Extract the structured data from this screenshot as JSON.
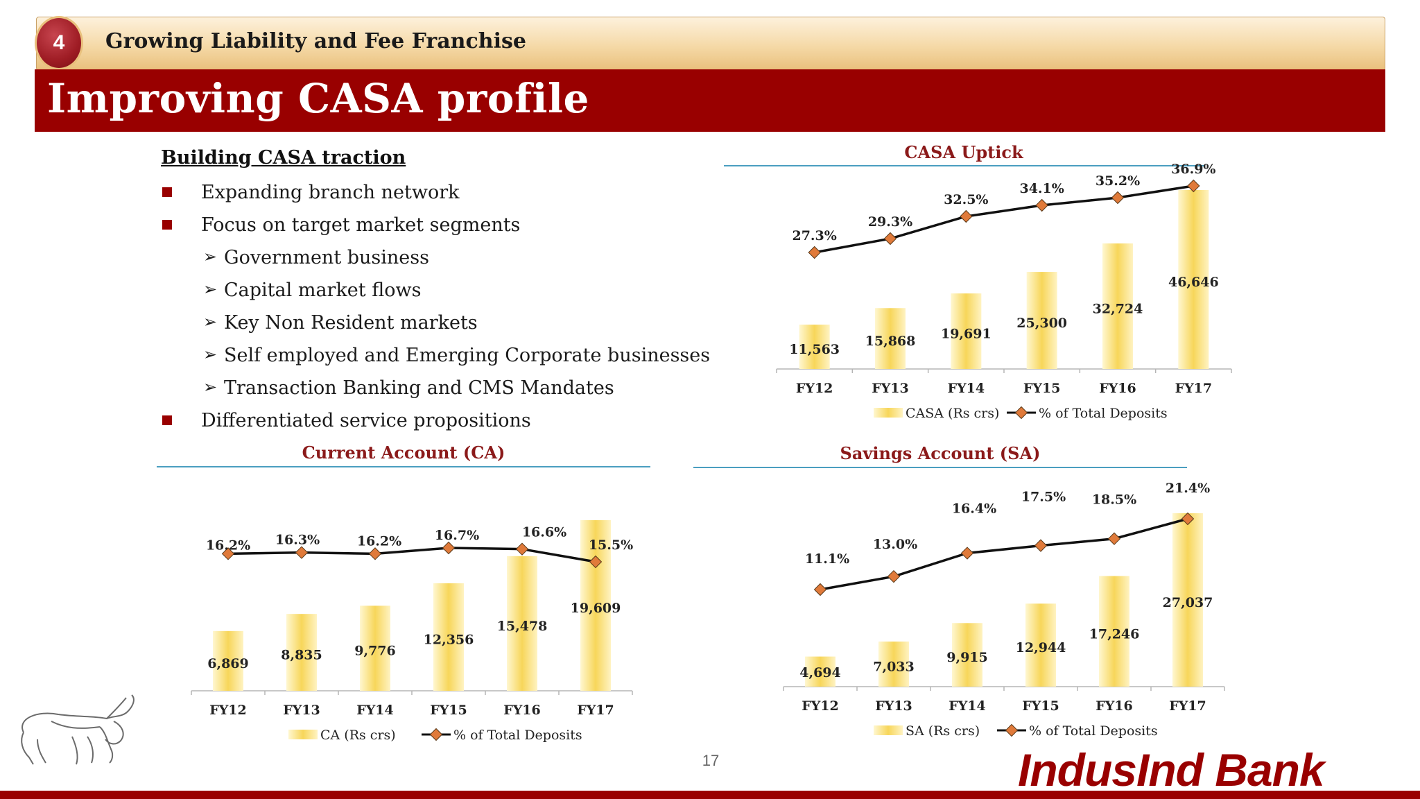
{
  "header": {
    "section_number": "4",
    "section_title": "Growing Liability and Fee Franchise",
    "page_title": "Improving CASA profile"
  },
  "bullets": {
    "heading": "Building CASA traction",
    "items": [
      {
        "text": "Expanding branch network",
        "level": 1
      },
      {
        "text": "Focus on target market segments",
        "level": 1
      },
      {
        "text": "Government business",
        "level": 2
      },
      {
        "text": "Capital market flows",
        "level": 2
      },
      {
        "text": "Key Non Resident markets",
        "level": 2
      },
      {
        "text": "Self employed and Emerging Corporate businesses",
        "level": 2
      },
      {
        "text": "Transaction Banking and CMS Mandates",
        "level": 2
      },
      {
        "text": "Differentiated service propositions",
        "level": 1
      }
    ]
  },
  "chart_data": [
    {
      "id": "casa",
      "type": "bar",
      "title": "CASA Uptick",
      "categories": [
        "FY12",
        "FY13",
        "FY14",
        "FY15",
        "FY16",
        "FY17"
      ],
      "series": [
        {
          "name": "CASA (Rs crs)",
          "type": "bar",
          "values": [
            11563,
            15868,
            19691,
            25300,
            32724,
            46646
          ],
          "labels": [
            "11,563",
            "15,868",
            "19,691",
            "25,300",
            "32,724",
            "46,646"
          ]
        },
        {
          "name": "% of Total Deposits",
          "type": "line",
          "values": [
            27.3,
            29.3,
            32.5,
            34.1,
            35.2,
            36.9
          ],
          "labels": [
            "27.3%",
            "29.3%",
            "32.5%",
            "34.1%",
            "35.2%",
            "36.9%"
          ]
        }
      ],
      "legend": "bottom"
    },
    {
      "id": "ca",
      "type": "bar",
      "title": "Current Account (CA)",
      "categories": [
        "FY12",
        "FY13",
        "FY14",
        "FY15",
        "FY16",
        "FY17"
      ],
      "series": [
        {
          "name": "CA (Rs crs)",
          "type": "bar",
          "values": [
            6869,
            8835,
            9776,
            12356,
            15478,
            19609
          ],
          "labels": [
            "6,869",
            "8,835",
            "9,776",
            "12,356",
            "15,478",
            "19,609"
          ]
        },
        {
          "name": "% of Total Deposits",
          "type": "line",
          "values": [
            16.2,
            16.3,
            16.2,
            16.7,
            16.6,
            15.5
          ],
          "labels": [
            "16.2%",
            "16.3%",
            "16.2%",
            "16.7%",
            "16.6%",
            "15.5%"
          ]
        }
      ],
      "legend": "bottom"
    },
    {
      "id": "sa",
      "type": "bar",
      "title": "Savings Account (SA)",
      "categories": [
        "FY12",
        "FY13",
        "FY14",
        "FY15",
        "FY16",
        "FY17"
      ],
      "series": [
        {
          "name": "SA (Rs crs)",
          "type": "bar",
          "values": [
            4694,
            7033,
            9915,
            12944,
            17246,
            27037
          ],
          "labels": [
            "4,694",
            "7,033",
            "9,915",
            "12,944",
            "17,246",
            "27,037"
          ]
        },
        {
          "name": "% of Total Deposits",
          "type": "line",
          "values": [
            11.1,
            13.0,
            16.4,
            17.5,
            18.5,
            21.4
          ],
          "labels": [
            "11.1%",
            "13.0%",
            "16.4%",
            "17.5%",
            "18.5%",
            "21.4%"
          ]
        }
      ],
      "legend": "bottom"
    }
  ],
  "footer": {
    "page_number": "17",
    "logo_text": "IndusInd Bank",
    "bull_logo_icon": "bull-logo-icon"
  },
  "colors": {
    "brand_red": "#990000",
    "bar_gold": "#f7d65a",
    "line": "#111111",
    "marker": "#e07a3a",
    "title_text": "#8b1a1a",
    "rule_blue": "#4a9ec0"
  }
}
